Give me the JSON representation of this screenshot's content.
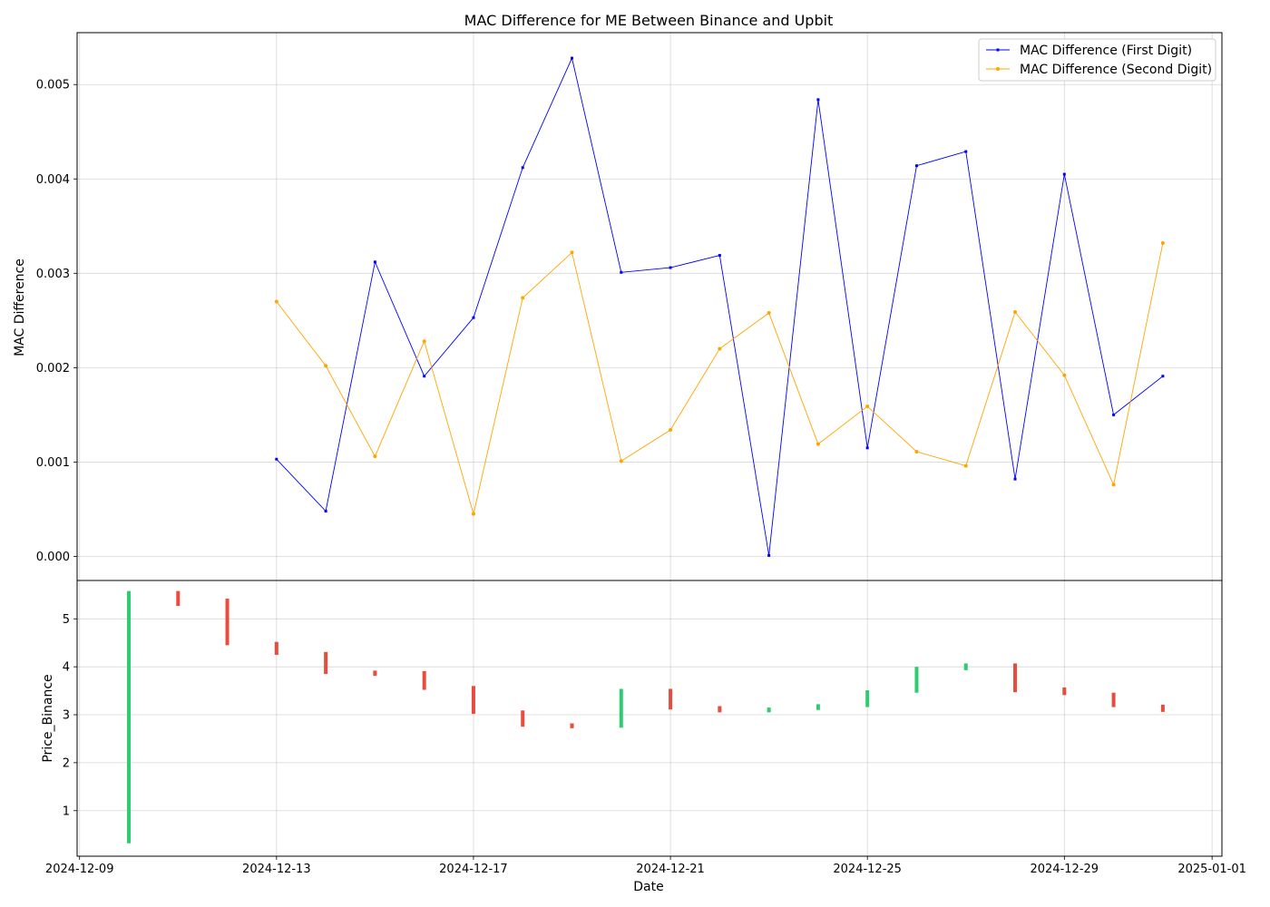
{
  "chart_data": [
    {
      "type": "line",
      "title": "MAC Difference for ME Between Binance and Upbit",
      "ylabel": "MAC Difference",
      "ylim": [
        -0.000255,
        0.00555
      ],
      "yticks": [
        0.0,
        0.001,
        0.002,
        0.003,
        0.004,
        0.005
      ],
      "ytick_labels": [
        "0.000",
        "0.001",
        "0.002",
        "0.003",
        "0.004",
        "0.005"
      ],
      "grid": true,
      "legend_position": "top-right",
      "x": [
        "2024-12-13",
        "2024-12-14",
        "2024-12-15",
        "2024-12-16",
        "2024-12-17",
        "2024-12-18",
        "2024-12-19",
        "2024-12-20",
        "2024-12-21",
        "2024-12-22",
        "2024-12-23",
        "2024-12-24",
        "2024-12-25",
        "2024-12-26",
        "2024-12-27",
        "2024-12-28",
        "2024-12-29",
        "2024-12-30",
        "2024-12-31"
      ],
      "series": [
        {
          "name": "MAC Difference (First Digit)",
          "color": "#0000ff",
          "values": [
            0.00103,
            0.00048,
            0.00312,
            0.00191,
            0.00253,
            0.00412,
            0.00528,
            0.00301,
            0.00306,
            0.00319,
            1e-05,
            0.00484,
            0.00115,
            0.00414,
            0.00429,
            0.00082,
            0.00405,
            0.0015,
            0.00191
          ]
        },
        {
          "name": "MAC Difference (Second Digit)",
          "color": "#ffa500",
          "values": [
            0.0027,
            0.00202,
            0.00106,
            0.00228,
            0.00045,
            0.00274,
            0.00322,
            0.00101,
            0.00134,
            0.0022,
            0.00258,
            0.00119,
            0.00159,
            0.00111,
            0.00096,
            0.00259,
            0.00192,
            0.00076,
            0.00332
          ]
        }
      ]
    },
    {
      "type": "candlestick",
      "xlabel": "Date",
      "ylabel": "Price_Binance",
      "ylim": [
        0.05,
        5.8
      ],
      "yticks": [
        1,
        2,
        3,
        4,
        5
      ],
      "ytick_labels": [
        "1",
        "2",
        "3",
        "4",
        "5"
      ],
      "grid": true,
      "xlim": [
        "2024-12-08.95",
        "2025-01-01.2"
      ],
      "xticks": [
        "2024-12-09",
        "2024-12-13",
        "2024-12-17",
        "2024-12-21",
        "2024-12-25",
        "2024-12-29",
        "2025-01-01"
      ],
      "xtick_labels": [
        "2024-12-09",
        "2024-12-13",
        "2024-12-17",
        "2024-12-21",
        "2024-12-25",
        "2024-12-29",
        "2025-01-01"
      ],
      "up_color": "#2ecc71",
      "down_color": "#e74c3c",
      "candles": [
        {
          "date": "2024-12-10",
          "open": 0.32,
          "close": 5.58
        },
        {
          "date": "2024-12-11",
          "open": 5.58,
          "close": 5.27
        },
        {
          "date": "2024-12-12",
          "open": 5.42,
          "close": 4.45
        },
        {
          "date": "2024-12-13",
          "open": 4.52,
          "close": 4.25
        },
        {
          "date": "2024-12-14",
          "open": 4.31,
          "close": 3.85
        },
        {
          "date": "2024-12-15",
          "open": 3.92,
          "close": 3.81
        },
        {
          "date": "2024-12-16",
          "open": 3.91,
          "close": 3.52
        },
        {
          "date": "2024-12-17",
          "open": 3.6,
          "close": 3.02
        },
        {
          "date": "2024-12-18",
          "open": 3.09,
          "close": 2.75
        },
        {
          "date": "2024-12-19",
          "open": 2.82,
          "close": 2.72
        },
        {
          "date": "2024-12-20",
          "open": 2.73,
          "close": 3.54
        },
        {
          "date": "2024-12-21",
          "open": 3.54,
          "close": 3.11
        },
        {
          "date": "2024-12-22",
          "open": 3.18,
          "close": 3.05
        },
        {
          "date": "2024-12-23",
          "open": 3.05,
          "close": 3.15
        },
        {
          "date": "2024-12-24",
          "open": 3.1,
          "close": 3.22
        },
        {
          "date": "2024-12-25",
          "open": 3.16,
          "close": 3.51
        },
        {
          "date": "2024-12-26",
          "open": 3.46,
          "close": 4.0
        },
        {
          "date": "2024-12-27",
          "open": 3.93,
          "close": 4.07
        },
        {
          "date": "2024-12-28",
          "open": 4.07,
          "close": 3.47
        },
        {
          "date": "2024-12-29",
          "open": 3.57,
          "close": 3.41
        },
        {
          "date": "2024-12-30",
          "open": 3.46,
          "close": 3.16
        },
        {
          "date": "2024-12-31",
          "open": 3.21,
          "close": 3.06
        }
      ]
    }
  ]
}
